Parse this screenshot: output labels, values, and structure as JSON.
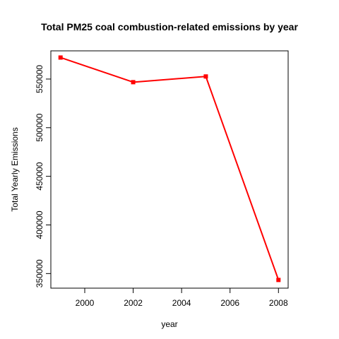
{
  "chart_data": {
    "type": "line",
    "title": "Total PM25 coal combustion-related emissions by year",
    "xlabel": "year",
    "ylabel": "Total Yearly Emissions",
    "x": [
      1999,
      2002,
      2005,
      2008
    ],
    "xlim": [
      1998.6,
      2008.4
    ],
    "ylim": [
      335000,
      579000
    ],
    "xticks": [
      2000,
      2002,
      2004,
      2006,
      2008
    ],
    "yticks": [
      350000,
      400000,
      450000,
      500000,
      550000
    ],
    "grid": false,
    "series": [
      {
        "values": [
          572126,
          546789,
          552675,
          343432
        ],
        "color": "#ff0000"
      }
    ]
  }
}
